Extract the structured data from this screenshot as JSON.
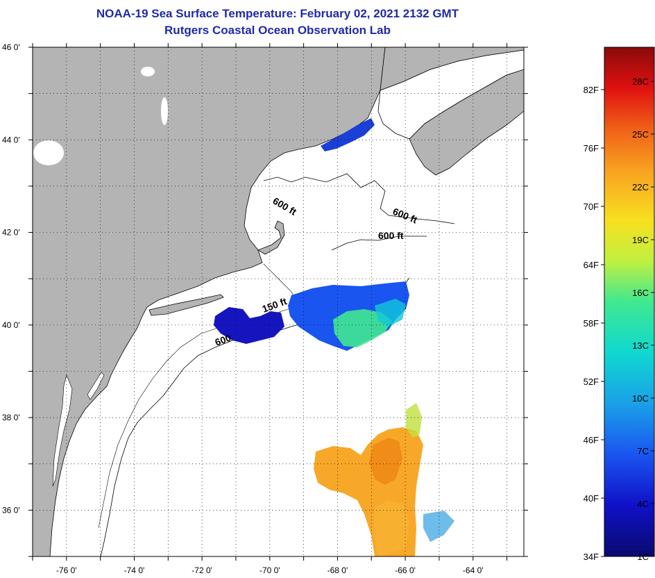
{
  "title": {
    "line1": "NOAA-19 Sea Surface Temperature:  February 02, 2021 2132 GMT",
    "line2": "Rutgers Coastal Ocean Observation Lab"
  },
  "axes": {
    "x_ticks": [
      -76,
      -74,
      -72,
      -70,
      -68,
      -66,
      -64
    ],
    "y_ticks": [
      36,
      38,
      40,
      42,
      44,
      46
    ],
    "x_tick_labels": [
      "-76 0'",
      "-74 0'",
      "-72 0'",
      "-70 0'",
      "-68 0'",
      "-66 0'",
      "-64 0'"
    ],
    "y_tick_labels": [
      "36 0'",
      "38 0'",
      "40 0'",
      "42 0'",
      "44 0'",
      "46 0'"
    ],
    "lon_range": [
      -77,
      -62.5
    ],
    "lat_range": [
      35,
      46
    ],
    "grid": "dotted"
  },
  "contour_labels": [
    {
      "text": "600 ft"
    },
    {
      "text": "600 ft"
    },
    {
      "text": "600 ft"
    },
    {
      "text": "150 ft"
    },
    {
      "text": "600"
    }
  ],
  "colorbar": {
    "fahrenheit_labels": [
      "34F",
      "40F",
      "46F",
      "52F",
      "58F",
      "64F",
      "70F",
      "76F",
      "82F"
    ],
    "celsius_labels": [
      "1C",
      "4C",
      "7C",
      "10C",
      "13C",
      "16C",
      "19C",
      "22C",
      "25C",
      "28C"
    ],
    "colors": [
      "#0a0a6e",
      "#1010c8",
      "#1a55f0",
      "#1aa0e8",
      "#10d8d0",
      "#40e890",
      "#c0f040",
      "#f8e020",
      "#f8a020",
      "#f06018",
      "#e01010",
      "#8a0a0a"
    ]
  },
  "style": {
    "land_color": "#b4b4b4",
    "ocean_color": "#ffffff",
    "title_color": "#1f2aa8"
  }
}
